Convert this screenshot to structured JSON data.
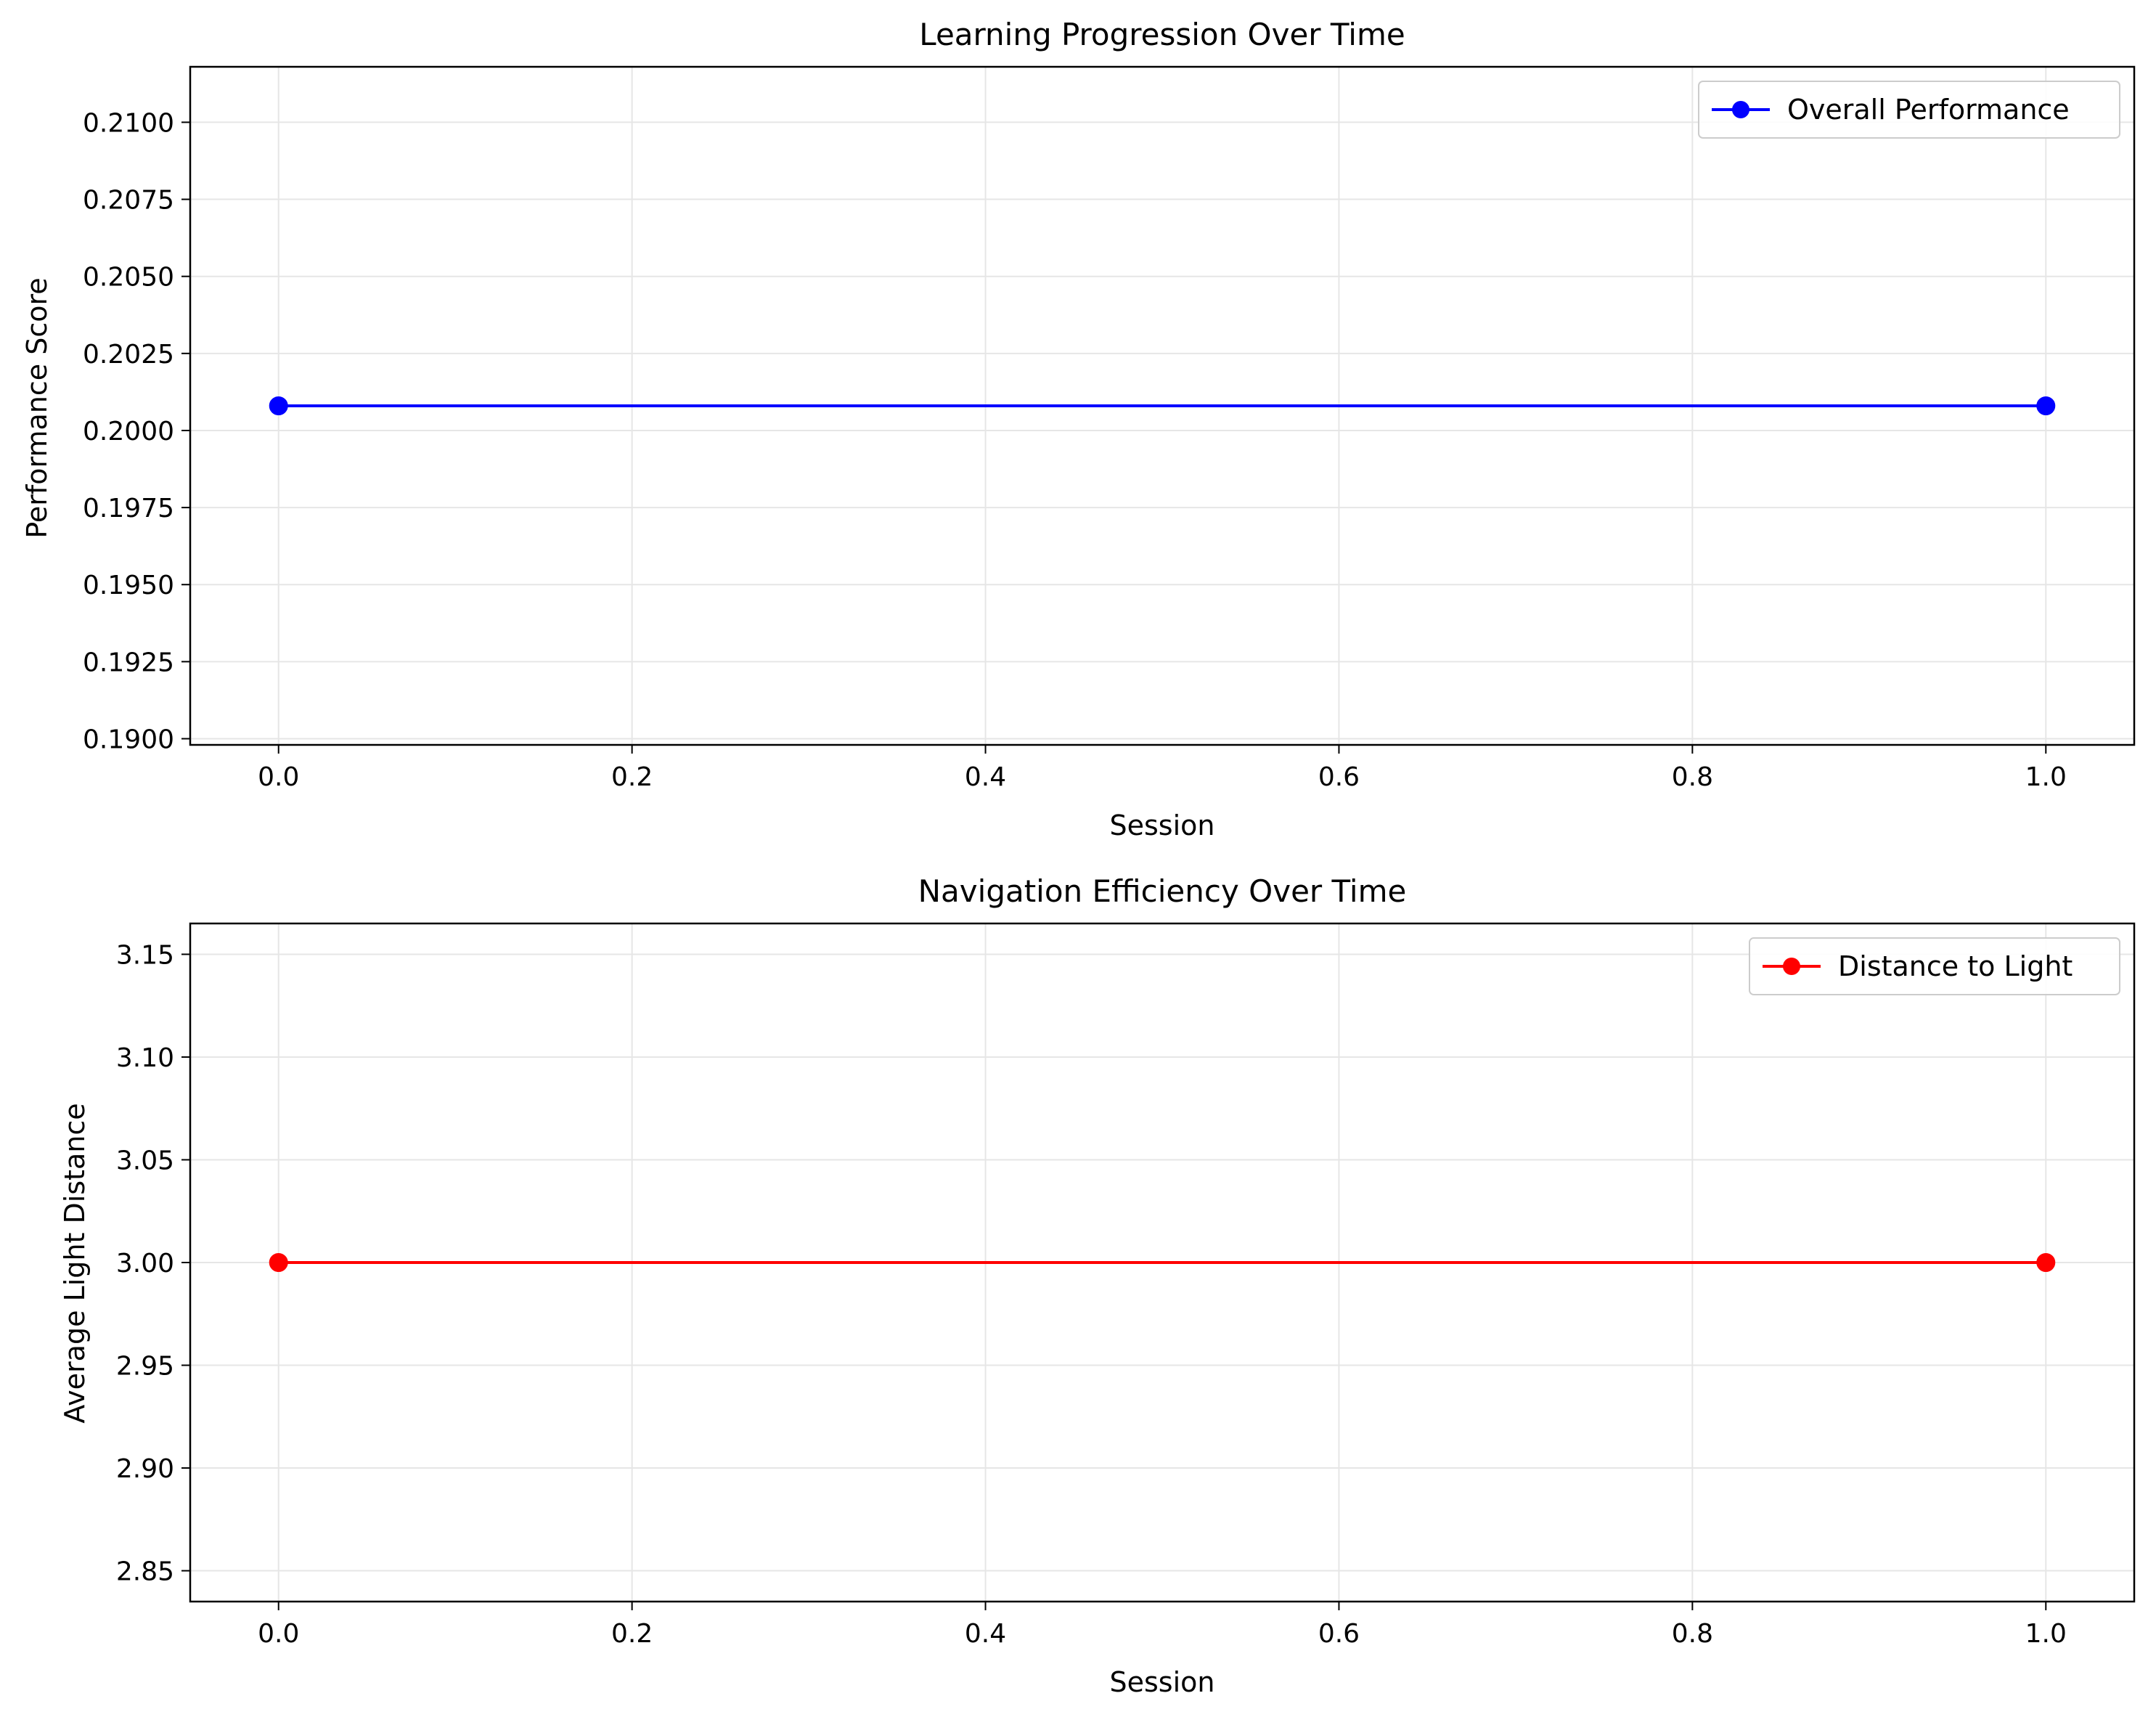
{
  "chart_data": [
    {
      "type": "line",
      "title": "Learning Progression Over Time",
      "xlabel": "Session",
      "ylabel": "Performance Score",
      "xlim": [
        -0.05,
        1.05
      ],
      "ylim": [
        0.1898,
        0.2118
      ],
      "x_ticks": [
        0.0,
        0.2,
        0.4,
        0.6,
        0.8,
        1.0
      ],
      "x_tick_labels": [
        "0.0",
        "0.2",
        "0.4",
        "0.6",
        "0.8",
        "1.0"
      ],
      "y_ticks": [
        0.19,
        0.1925,
        0.195,
        0.1975,
        0.2,
        0.2025,
        0.205,
        0.2075,
        0.21
      ],
      "y_tick_labels": [
        "0.1900",
        "0.1925",
        "0.1950",
        "0.1975",
        "0.2000",
        "0.2025",
        "0.2050",
        "0.2075",
        "0.2100"
      ],
      "grid": true,
      "legend_position": "upper right",
      "series": [
        {
          "name": "Overall Performance",
          "color": "#0000ff",
          "marker": "circle",
          "x": [
            0,
            1
          ],
          "y": [
            0.2008,
            0.2008
          ]
        }
      ]
    },
    {
      "type": "line",
      "title": "Navigation Efficiency Over Time",
      "xlabel": "Session",
      "ylabel": "Average Light Distance",
      "xlim": [
        -0.05,
        1.05
      ],
      "ylim": [
        2.835,
        3.165
      ],
      "x_ticks": [
        0.0,
        0.2,
        0.4,
        0.6,
        0.8,
        1.0
      ],
      "x_tick_labels": [
        "0.0",
        "0.2",
        "0.4",
        "0.6",
        "0.8",
        "1.0"
      ],
      "y_ticks": [
        2.85,
        2.9,
        2.95,
        3.0,
        3.05,
        3.1,
        3.15
      ],
      "y_tick_labels": [
        "2.85",
        "2.90",
        "2.95",
        "3.00",
        "3.05",
        "3.10",
        "3.15"
      ],
      "grid": true,
      "legend_position": "upper right",
      "series": [
        {
          "name": "Distance to Light",
          "color": "#ff0000",
          "marker": "circle",
          "x": [
            0,
            1
          ],
          "y": [
            3.0,
            3.0
          ]
        }
      ]
    }
  ]
}
